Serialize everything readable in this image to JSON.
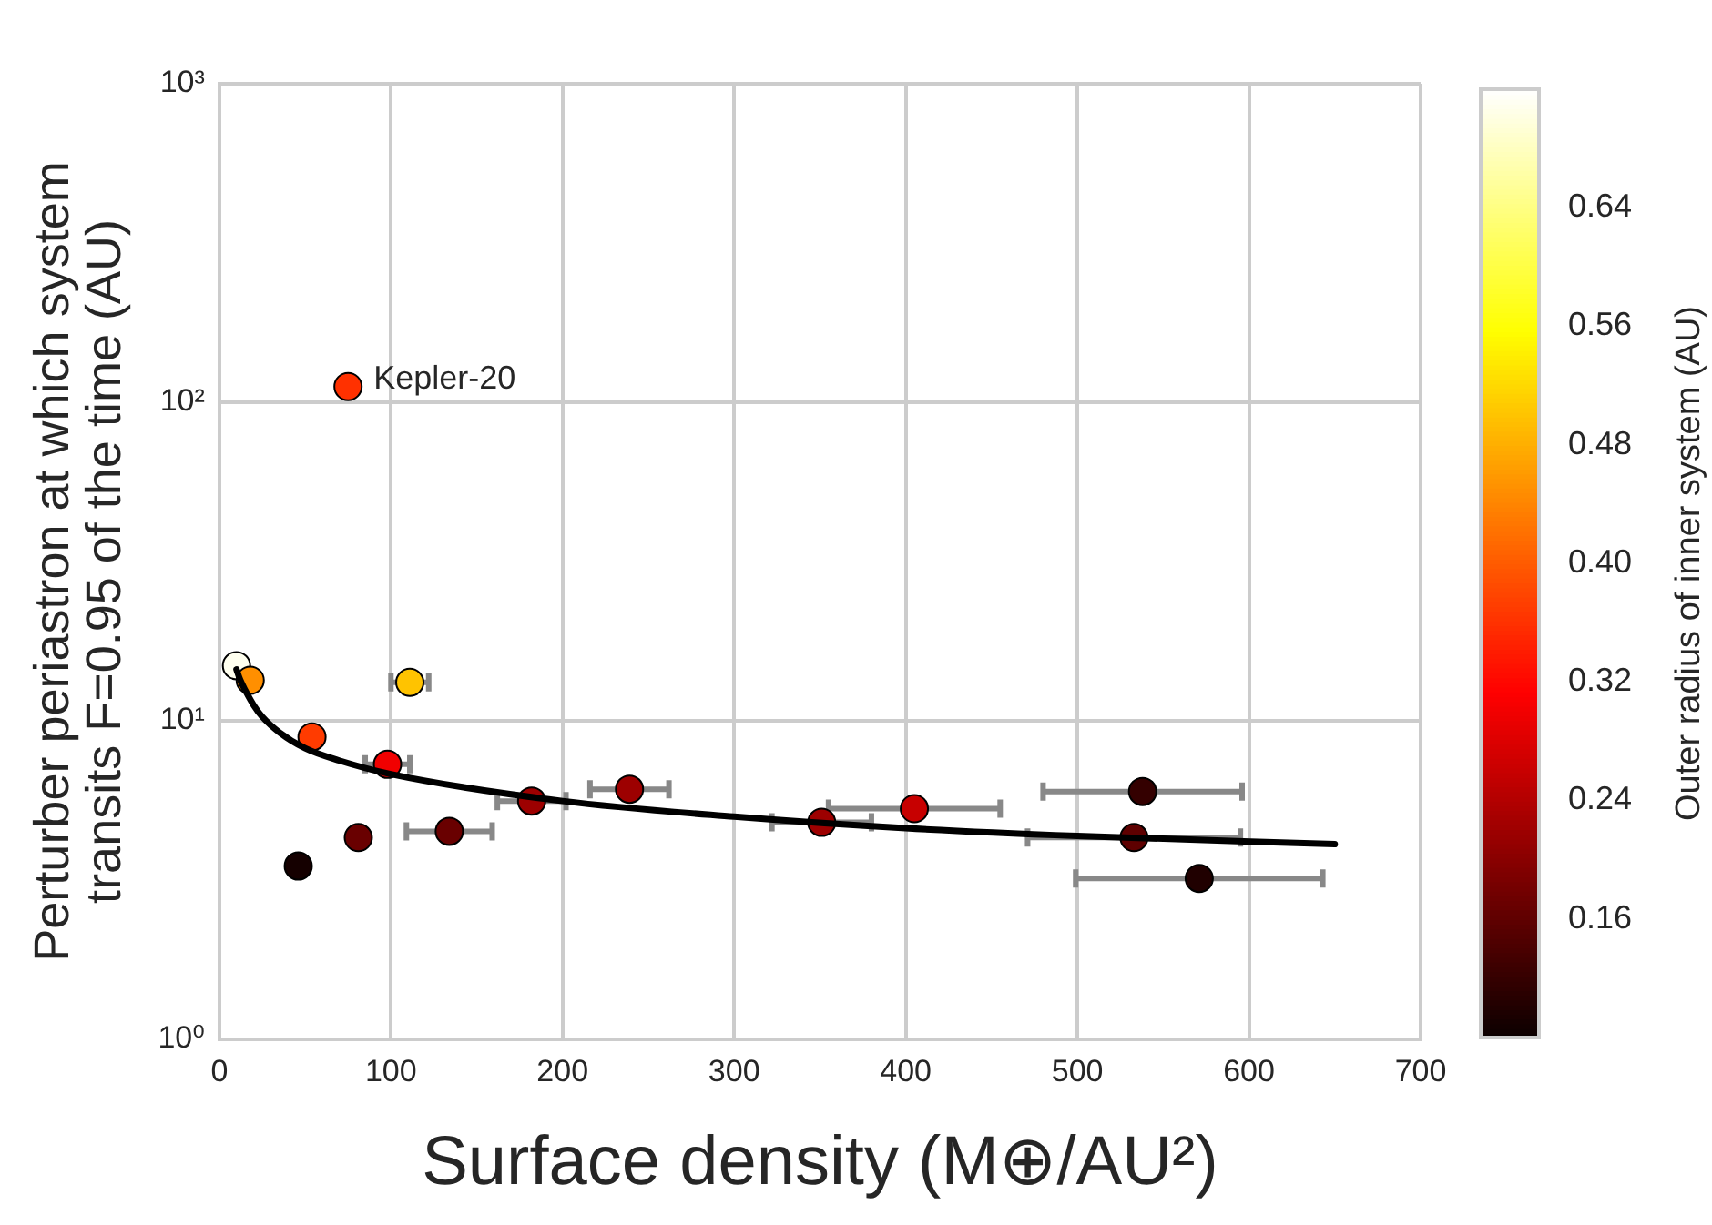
{
  "chart_data": {
    "type": "scatter",
    "xlabel": "Surface density (M⊕/AU²)",
    "ylabel": "Perturber periastron at which system transits F=0.95 of the time (AU)",
    "clabel": "Outer radius of inner system (AU)",
    "annotations": [
      {
        "text": "Kepler-20",
        "x": 75,
        "y": 112
      }
    ],
    "series": [
      {
        "marker": "circle",
        "x": [
          10,
          18,
          111,
          54,
          98,
          75,
          46,
          81,
          134,
          182,
          239,
          351,
          405,
          538,
          533,
          571
        ],
        "values": [
          14.9,
          13.4,
          13.2,
          8.9,
          7.3,
          112,
          3.5,
          4.3,
          4.5,
          5.6,
          6.1,
          4.8,
          5.3,
          6.0,
          4.3,
          3.2
        ],
        "xerrors": [
          null,
          null,
          11,
          null,
          13,
          null,
          null,
          null,
          25,
          20,
          23,
          29,
          50,
          58,
          62,
          72
        ],
        "colors": [
          "#ffffef",
          "#ff8e00",
          "#ffc300",
          "#ff3b00",
          "#f10000",
          "#ff3000",
          "#150000",
          "#690000",
          "#690000",
          "#9d0000",
          "#9d0000",
          "#9d0000",
          "#c70000",
          "#340000",
          "#5e0000",
          "#1f0000"
        ],
        "cvalues": [
          0.71,
          0.45,
          0.5,
          0.37,
          0.3,
          0.36,
          0.09,
          0.17,
          0.17,
          0.22,
          0.22,
          0.22,
          0.26,
          0.12,
          0.16,
          0.1
        ]
      },
      {
        "type": "line",
        "marker": "none",
        "color": "#000000",
        "x": [
          10,
          12,
          15,
          20,
          25,
          35,
          50,
          70,
          100,
          200,
          300,
          400,
          500,
          650
        ],
        "values": [
          14.5,
          13.5,
          12.5,
          11.2,
          10.3,
          9.2,
          8.2,
          7.5,
          6.8,
          5.6,
          5.0,
          4.6,
          4.35,
          4.1
        ]
      }
    ],
    "xlim": [
      0,
      700
    ],
    "xticks": [
      0,
      100,
      200,
      300,
      400,
      500,
      600,
      700
    ],
    "ylim": [
      1,
      1000
    ],
    "yticks": [
      {
        "value": 1,
        "label": "10⁰"
      },
      {
        "value": 10,
        "label": "10¹"
      },
      {
        "value": 100,
        "label": "10²"
      },
      {
        "value": 1000,
        "label": "10³"
      }
    ],
    "log": "y",
    "grid": true,
    "clim": [
      0.08,
      0.72
    ],
    "cticks": [
      0.16,
      0.24,
      0.32,
      {
        "value": 0.4,
        "label": "0.40"
      },
      0.48,
      0.56,
      0.64
    ]
  }
}
